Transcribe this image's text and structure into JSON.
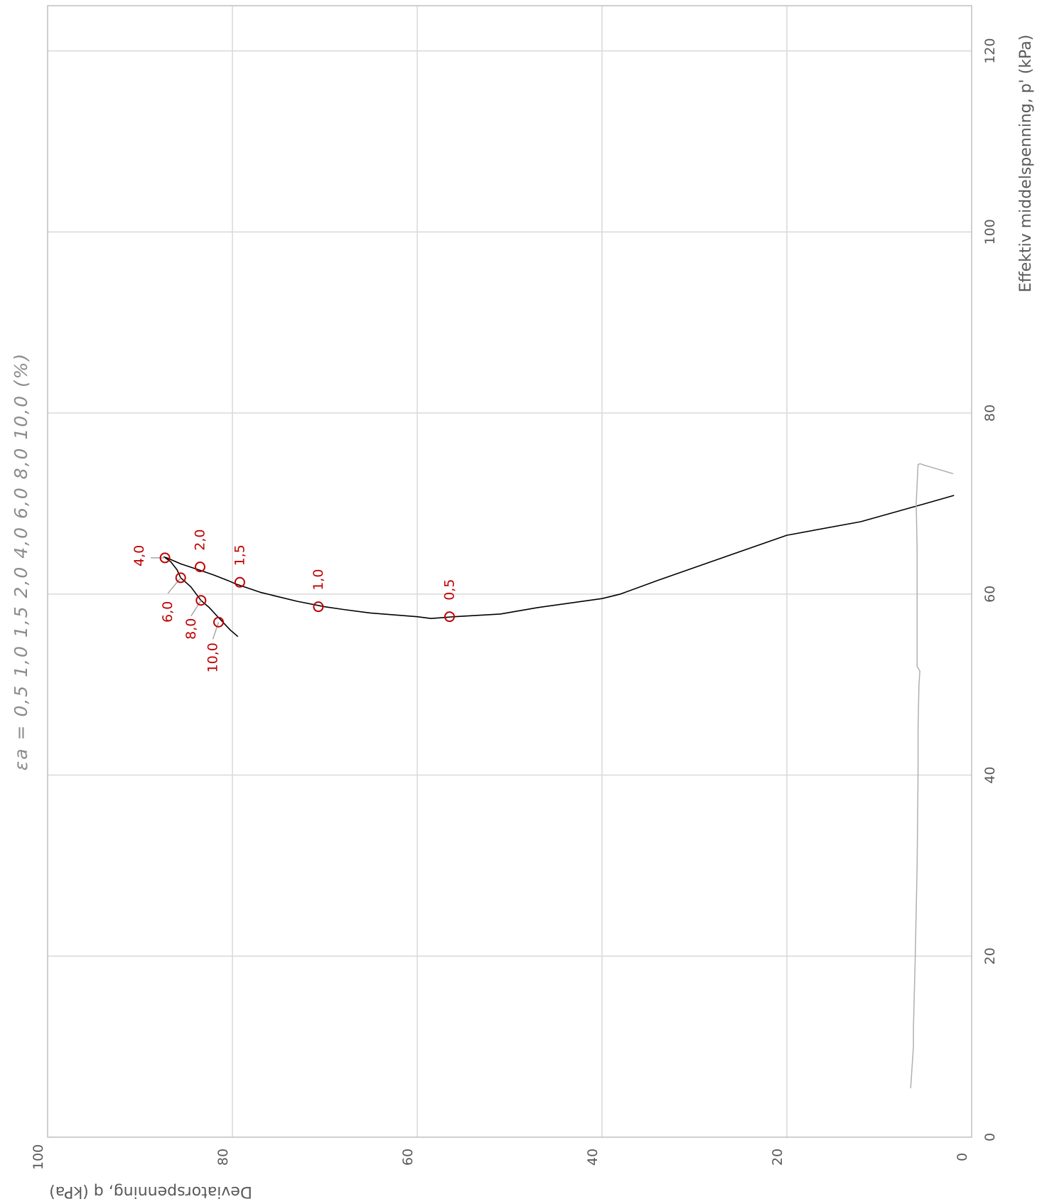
{
  "chart_data": {
    "type": "line",
    "orientation": "rotated 90 degrees clockwise",
    "axis_titles": {
      "p_axis": "Effektiv middelspenning, p' (kPa)",
      "q_axis": "Deviatorspenning, q (kPa)"
    },
    "p_axis": {
      "range": [
        0,
        125
      ],
      "ticks": [
        "0",
        "20",
        "40",
        "60",
        "80",
        "100",
        "120"
      ]
    },
    "q_axis": {
      "range": [
        0,
        100
      ],
      "ticks": [
        "0",
        "20",
        "40",
        "60",
        "80",
        "100"
      ]
    },
    "grid": true,
    "strain_legend": "εa  =  0,5  1,0  1,5  2,0  4,0  6,0  8,0  10,0  (%)",
    "colors": {
      "stress_path": "#000000",
      "consolidation_path": "#b0b0b0",
      "strain_markers": "#c00000",
      "grid": "#d9d9d9",
      "frame": "#bfbfbf"
    },
    "series": [
      {
        "points": [
          [
            70.9,
            1.9
          ],
          [
            70.0,
            5.0
          ],
          [
            68.0,
            12.0
          ],
          [
            66.5,
            20.0
          ],
          [
            64.0,
            27.0
          ],
          [
            61.5,
            34.0
          ],
          [
            60.0,
            38.0
          ],
          [
            59.5,
            40.0
          ],
          [
            58.5,
            47.0
          ],
          [
            57.8,
            51.0
          ],
          [
            57.5,
            56.0
          ],
          [
            57.3,
            58.5
          ],
          [
            57.5,
            60.0
          ],
          [
            57.9,
            65.0
          ],
          [
            58.3,
            68.0
          ],
          [
            58.6,
            70.0
          ],
          [
            59.2,
            73.0
          ],
          [
            59.7,
            75.0
          ],
          [
            60.2,
            77.0
          ],
          [
            61.1,
            79.6
          ],
          [
            61.5,
            80.5
          ],
          [
            62.1,
            82.0
          ],
          [
            62.6,
            83.4
          ],
          [
            63.3,
            85.5
          ],
          [
            64.0,
            87.1
          ],
          [
            64.1,
            87.4
          ],
          [
            63.6,
            86.7
          ],
          [
            62.7,
            86.0
          ],
          [
            61.8,
            85.6
          ],
          [
            60.8,
            84.5
          ],
          [
            59.3,
            83.4
          ],
          [
            58.5,
            82.5
          ],
          [
            57.4,
            81.5
          ],
          [
            56.0,
            80.2
          ],
          [
            55.3,
            79.4
          ]
        ]
      },
      {
        "points": [
          [
            5.4,
            6.6
          ],
          [
            10.0,
            6.3
          ],
          [
            12.0,
            6.3
          ],
          [
            20.0,
            6.1
          ],
          [
            30.0,
            5.9
          ],
          [
            40.0,
            5.8
          ],
          [
            45.0,
            5.8
          ],
          [
            50.0,
            5.7
          ],
          [
            51.5,
            5.6
          ],
          [
            52.0,
            5.9
          ],
          [
            55.0,
            5.9
          ],
          [
            60.0,
            5.9
          ],
          [
            65.0,
            5.9
          ],
          [
            70.0,
            6.0
          ],
          [
            74.3,
            5.8
          ],
          [
            74.4,
            5.6
          ],
          [
            74.2,
            5.0
          ],
          [
            73.9,
            4.0
          ],
          [
            73.6,
            3.0
          ],
          [
            73.3,
            2.0
          ]
        ]
      }
    ],
    "strain_markers": [
      {
        "label": "0,5",
        "p": 57.5,
        "q": 56.5
      },
      {
        "label": "1,0",
        "p": 58.6,
        "q": 70.7
      },
      {
        "label": "1,5",
        "p": 61.3,
        "q": 79.2
      },
      {
        "label": "2,0",
        "p": 63.0,
        "q": 83.5
      },
      {
        "label": "4,0",
        "p": 64.0,
        "q": 87.3
      },
      {
        "label": "6,0",
        "p": 61.8,
        "q": 85.6
      },
      {
        "label": "8,0",
        "p": 59.3,
        "q": 83.4
      },
      {
        "label": "10,0",
        "p": 56.9,
        "q": 81.5
      }
    ]
  }
}
